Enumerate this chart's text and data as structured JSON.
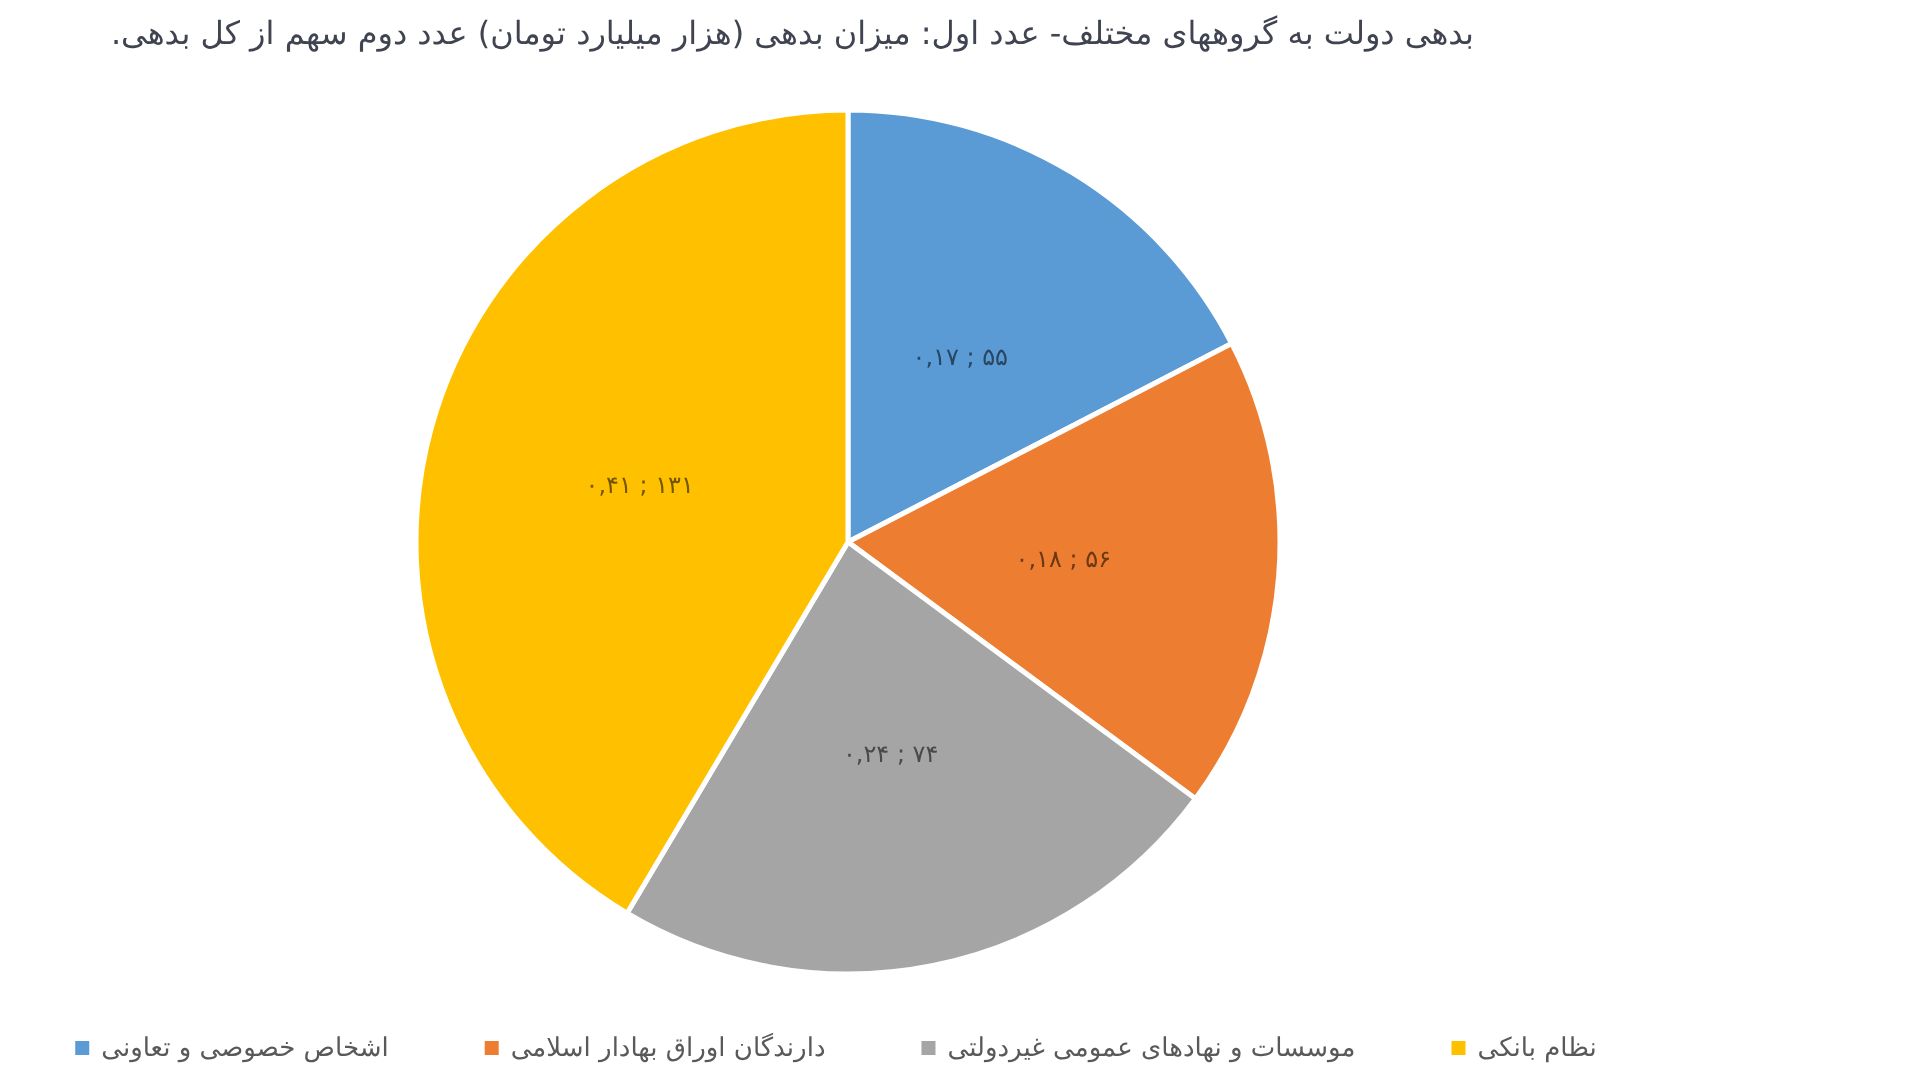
{
  "chart_data": {
    "type": "pie",
    "title": "بدهی دولت به گروههای مختلف- عدد اول: میزان بدهی (هزار میلیارد تومان) عدد دوم سهم از کل بدهی.",
    "categories": [
      "اشخاص خصوصی و تعاونی",
      "دارندگان اوراق بهادار اسلامی",
      "موسسات و نهادهای عمومی غیردولتی",
      "نظام بانکی"
    ],
    "values": [
      55,
      56,
      74,
      131
    ],
    "colors": [
      "#5b9bd5",
      "#ed7d31",
      "#a5a5a5",
      "#ffc000"
    ],
    "value_labels": [
      "۵۵ ; ۰,۱۷",
      "۵۶ ; ۰,۱۸",
      "۷۴ ; ۰,۲۴",
      "۱۳۱ ; ۰,۴۱"
    ],
    "legend": "bottom"
  }
}
